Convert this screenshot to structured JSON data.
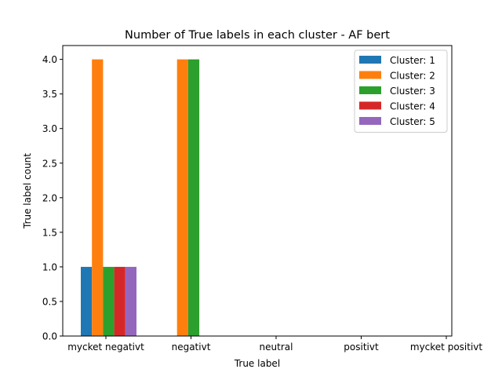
{
  "chart_data": {
    "type": "bar",
    "title": "Number of True labels in each cluster - AF bert",
    "xlabel": "True label",
    "ylabel": "True label count",
    "categories": [
      "mycket negativt",
      "negativt",
      "neutral",
      "positivt",
      "mycket positivt"
    ],
    "series": [
      {
        "name": "Cluster: 1",
        "color": "#1f77b4",
        "values": [
          1,
          0,
          0,
          0,
          0
        ]
      },
      {
        "name": "Cluster: 2",
        "color": "#ff7f0e",
        "values": [
          4,
          4,
          0,
          0,
          0
        ]
      },
      {
        "name": "Cluster: 3",
        "color": "#2ca02c",
        "values": [
          1,
          4,
          0,
          0,
          0
        ]
      },
      {
        "name": "Cluster: 4",
        "color": "#d62728",
        "values": [
          1,
          0,
          0,
          0,
          0
        ]
      },
      {
        "name": "Cluster: 5",
        "color": "#9467bd",
        "values": [
          1,
          0,
          0,
          0,
          0
        ]
      }
    ],
    "ylim": [
      0,
      4.2
    ],
    "yticks": [
      "0.0",
      "0.5",
      "1.0",
      "1.5",
      "2.0",
      "2.5",
      "3.0",
      "3.5",
      "4.0"
    ],
    "grid": false,
    "legend": "top-right"
  }
}
